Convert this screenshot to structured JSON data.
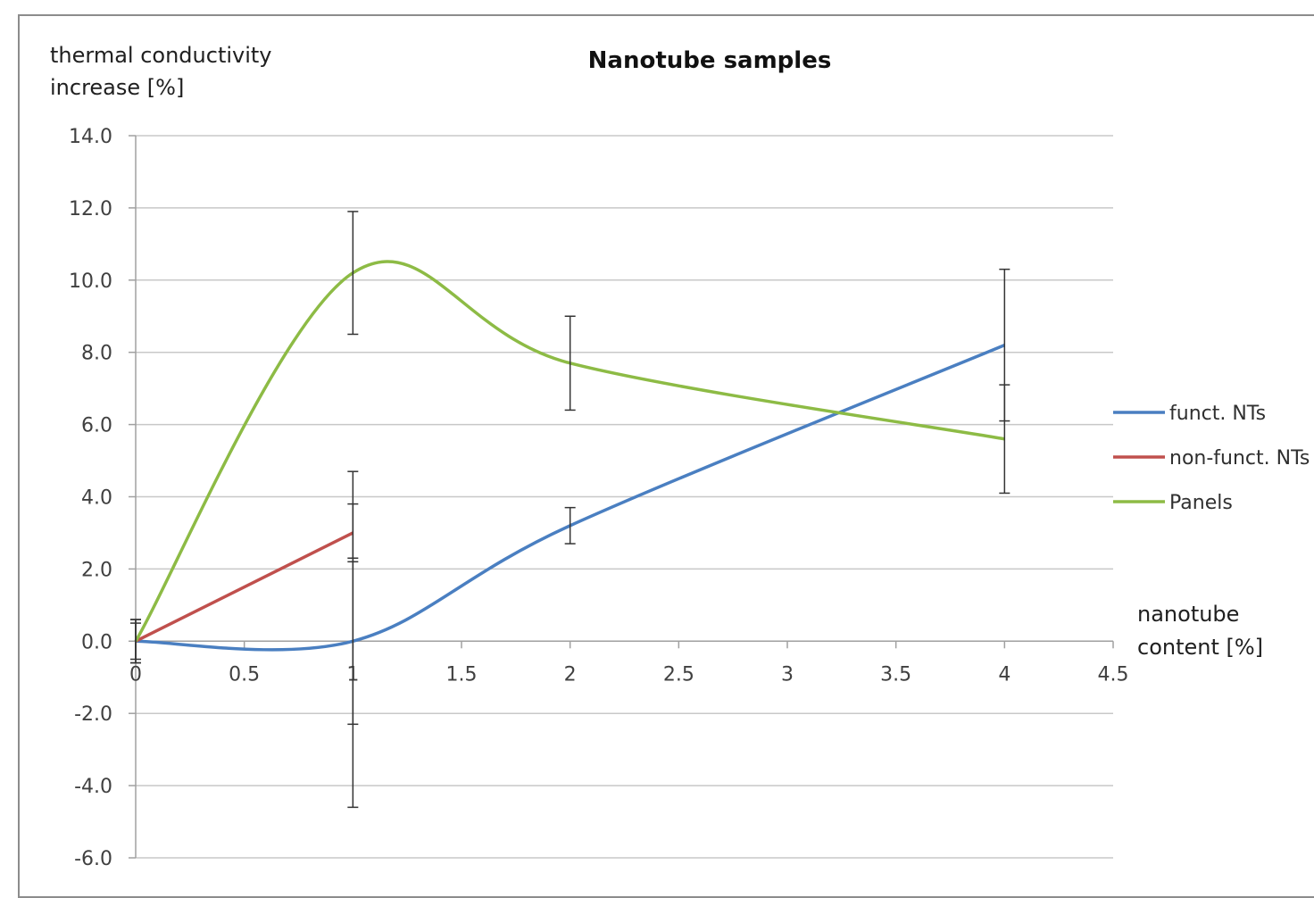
{
  "chart_data": {
    "type": "line",
    "title": "Nanotube samples",
    "ylabel_line1": "thermal conductivity",
    "ylabel_line2": "increase [%]",
    "xlabel_line1": "nanotube",
    "xlabel_line2": "content [%]",
    "xlim": [
      0,
      4.5
    ],
    "ylim": [
      -6,
      14
    ],
    "xticks": [
      "0",
      "0.5",
      "1",
      "1.5",
      "2",
      "2.5",
      "3",
      "3.5",
      "4",
      "4.5"
    ],
    "yticks": [
      "14.0",
      "12.0",
      "10.0",
      "8.0",
      "6.0",
      "4.0",
      "2.0",
      "0.0",
      "-2.0",
      "-4.0",
      "-6.0"
    ],
    "grid": true,
    "legend_position": "right",
    "series": [
      {
        "name": "funct. NTs",
        "color": "#4a7fc1",
        "smooth": true,
        "points": [
          {
            "x": 0,
            "y": 0.0,
            "err": 0.6
          },
          {
            "x": 1,
            "y": 0.0,
            "err": 2.3
          },
          {
            "x": 2,
            "y": 3.2,
            "err": 0.5
          },
          {
            "x": 4,
            "y": 8.2,
            "err": 2.1
          }
        ]
      },
      {
        "name": "non-funct. NTs",
        "color": "#c0504d",
        "smooth": false,
        "points": [
          {
            "x": 0,
            "y": 0.0,
            "err": 0.5
          },
          {
            "x": 1,
            "y": 3.0,
            "err": 0.8
          }
        ]
      },
      {
        "name": "Panels",
        "color": "#8dbb45",
        "smooth": true,
        "points": [
          {
            "x": 0,
            "y": 0.0,
            "err": 0.6
          },
          {
            "x": 1,
            "y": 10.2,
            "err": 1.7
          },
          {
            "x": 2,
            "y": 7.7,
            "err": 1.3
          },
          {
            "x": 4,
            "y": 5.6,
            "err": 1.5
          }
        ]
      }
    ],
    "extra_error_bars": [
      {
        "x": 1,
        "low": -4.6,
        "high": 4.7
      }
    ]
  }
}
